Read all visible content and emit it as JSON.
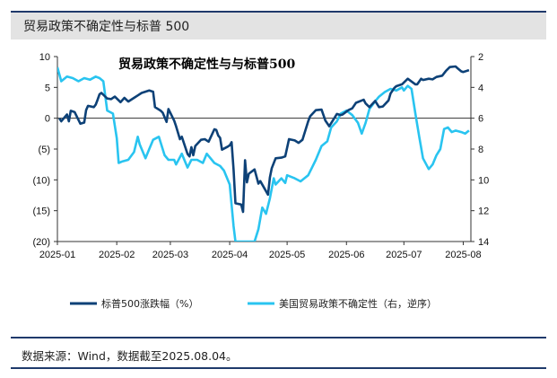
{
  "header": {
    "title": "贸易政策不确定性与标普 500"
  },
  "footer": {
    "source": "数据来源：Wind，数据截至2025.08.04。"
  },
  "chart_data": {
    "type": "line",
    "title": "贸易政策不确定性与与标普500",
    "x_ticks": [
      "2025-01",
      "2025-02",
      "2025-03",
      "2025-04",
      "2025-05",
      "2025-06",
      "2025-07",
      "2025-08"
    ],
    "xlim": [
      "2025-01-01",
      "2025-08-05"
    ],
    "y_left": {
      "ylim": [
        -20,
        10
      ],
      "ticks": [
        {
          "value": 10,
          "label": "10",
          "color": "#111111"
        },
        {
          "value": 5,
          "label": "5",
          "color": "#111111"
        },
        {
          "value": 0,
          "label": "0",
          "color": "#111111"
        },
        {
          "value": -5,
          "label": "(5)",
          "color": "#e0201f"
        },
        {
          "value": -10,
          "label": "(10)",
          "color": "#e0201f"
        },
        {
          "value": -15,
          "label": "(15)",
          "color": "#e0201f"
        },
        {
          "value": -20,
          "label": "(20)",
          "color": "#e0201f"
        }
      ]
    },
    "y_right": {
      "ylim": [
        2,
        14
      ],
      "inverted": true,
      "ticks": [
        {
          "value": 2,
          "label": "2"
        },
        {
          "value": 4,
          "label": "4"
        },
        {
          "value": 6,
          "label": "6"
        },
        {
          "value": 8,
          "label": "8"
        },
        {
          "value": 10,
          "label": "10"
        },
        {
          "value": 12,
          "label": "12"
        },
        {
          "value": 14,
          "label": "14"
        }
      ]
    },
    "legend_placement": "bottom",
    "series": [
      {
        "name": "标普500涨跌幅（%）",
        "axis": "left",
        "color": "#0d4177",
        "points": [
          [
            "2025-01-02",
            0.0
          ],
          [
            "2025-01-03",
            -0.5
          ],
          [
            "2025-01-06",
            0.6
          ],
          [
            "2025-01-07",
            -0.5
          ],
          [
            "2025-01-08",
            1.2
          ],
          [
            "2025-01-10",
            1.0
          ],
          [
            "2025-01-13",
            -0.9
          ],
          [
            "2025-01-15",
            -0.7
          ],
          [
            "2025-01-16",
            1.3
          ],
          [
            "2025-01-17",
            2.0
          ],
          [
            "2025-01-20",
            1.8
          ],
          [
            "2025-01-21",
            2.2
          ],
          [
            "2025-01-22",
            3.0
          ],
          [
            "2025-01-23",
            3.9
          ],
          [
            "2025-01-24",
            4.1
          ],
          [
            "2025-01-27",
            3.2
          ],
          [
            "2025-01-29",
            3.1
          ],
          [
            "2025-01-31",
            3.5
          ],
          [
            "2025-02-03",
            2.6
          ],
          [
            "2025-02-05",
            3.3
          ],
          [
            "2025-02-07",
            2.7
          ],
          [
            "2025-02-10",
            3.3
          ],
          [
            "2025-02-12",
            3.7
          ],
          [
            "2025-02-14",
            4.1
          ],
          [
            "2025-02-18",
            4.5
          ],
          [
            "2025-02-19",
            4.4
          ],
          [
            "2025-02-20",
            4.3
          ],
          [
            "2025-02-21",
            1.8
          ],
          [
            "2025-02-24",
            1.2
          ],
          [
            "2025-02-25",
            0.9
          ],
          [
            "2025-02-27",
            -0.6
          ],
          [
            "2025-02-28",
            1.5
          ],
          [
            "2025-03-03",
            -0.4
          ],
          [
            "2025-03-04",
            -1.3
          ],
          [
            "2025-03-06",
            -3.4
          ],
          [
            "2025-03-07",
            -3.0
          ],
          [
            "2025-03-10",
            -5.8
          ],
          [
            "2025-03-11",
            -6.2
          ],
          [
            "2025-03-12",
            -4.7
          ],
          [
            "2025-03-13",
            -6.0
          ],
          [
            "2025-03-14",
            -4.5
          ],
          [
            "2025-03-17",
            -3.5
          ],
          [
            "2025-03-19",
            -3.4
          ],
          [
            "2025-03-21",
            -3.8
          ],
          [
            "2025-03-24",
            -1.8
          ],
          [
            "2025-03-25",
            -1.9
          ],
          [
            "2025-03-26",
            -2.8
          ],
          [
            "2025-03-27",
            -3.2
          ],
          [
            "2025-03-28",
            -5.1
          ],
          [
            "2025-03-31",
            -4.6
          ],
          [
            "2025-04-01",
            -4.4
          ],
          [
            "2025-04-02",
            -3.9
          ],
          [
            "2025-04-03",
            -8.3
          ],
          [
            "2025-04-04",
            -13.8
          ],
          [
            "2025-04-07",
            -14.0
          ],
          [
            "2025-04-08",
            -15.2
          ],
          [
            "2025-04-09",
            -6.8
          ],
          [
            "2025-04-10",
            -10.4
          ],
          [
            "2025-04-11",
            -9.0
          ],
          [
            "2025-04-14",
            -8.3
          ],
          [
            "2025-04-16",
            -10.6
          ],
          [
            "2025-04-17",
            -10.2
          ],
          [
            "2025-04-21",
            -12.4
          ],
          [
            "2025-04-22",
            -9.6
          ],
          [
            "2025-04-23",
            -8.1
          ],
          [
            "2025-04-25",
            -6.5
          ],
          [
            "2025-04-28",
            -6.4
          ],
          [
            "2025-04-30",
            -6.2
          ],
          [
            "2025-05-02",
            -3.4
          ],
          [
            "2025-05-05",
            -3.6
          ],
          [
            "2025-05-07",
            -4.0
          ],
          [
            "2025-05-09",
            -3.5
          ],
          [
            "2025-05-12",
            -0.5
          ],
          [
            "2025-05-13",
            0.3
          ],
          [
            "2025-05-16",
            1.3
          ],
          [
            "2025-05-19",
            1.4
          ],
          [
            "2025-05-21",
            -0.4
          ],
          [
            "2025-05-23",
            -1.3
          ],
          [
            "2025-05-27",
            0.7
          ],
          [
            "2025-05-29",
            0.5
          ],
          [
            "2025-05-30",
            0.6
          ],
          [
            "2025-06-02",
            1.3
          ],
          [
            "2025-06-04",
            1.6
          ],
          [
            "2025-06-06",
            2.5
          ],
          [
            "2025-06-10",
            3.0
          ],
          [
            "2025-06-11",
            2.4
          ],
          [
            "2025-06-13",
            1.8
          ],
          [
            "2025-06-16",
            2.8
          ],
          [
            "2025-06-18",
            1.8
          ],
          [
            "2025-06-20",
            1.9
          ],
          [
            "2025-06-23",
            2.9
          ],
          [
            "2025-06-24",
            4.0
          ],
          [
            "2025-06-26",
            4.9
          ],
          [
            "2025-06-27",
            5.2
          ],
          [
            "2025-06-30",
            5.5
          ],
          [
            "2025-07-03",
            6.4
          ],
          [
            "2025-07-07",
            5.5
          ],
          [
            "2025-07-08",
            5.5
          ],
          [
            "2025-07-10",
            6.4
          ],
          [
            "2025-07-11",
            6.2
          ],
          [
            "2025-07-14",
            6.4
          ],
          [
            "2025-07-16",
            6.3
          ],
          [
            "2025-07-18",
            6.7
          ],
          [
            "2025-07-21",
            6.9
          ],
          [
            "2025-07-23",
            7.7
          ],
          [
            "2025-07-25",
            8.3
          ],
          [
            "2025-07-28",
            8.4
          ],
          [
            "2025-07-29",
            8.1
          ],
          [
            "2025-07-31",
            7.6
          ],
          [
            "2025-08-01",
            7.5
          ],
          [
            "2025-08-04",
            7.8
          ]
        ]
      },
      {
        "name": "美国贸易政策不确定性（右，逆序）",
        "axis": "right",
        "color": "#29c4f0",
        "points": [
          [
            "2025-01-01",
            2.7
          ],
          [
            "2025-01-03",
            3.6
          ],
          [
            "2025-01-06",
            3.3
          ],
          [
            "2025-01-09",
            3.4
          ],
          [
            "2025-01-12",
            3.6
          ],
          [
            "2025-01-15",
            3.4
          ],
          [
            "2025-01-18",
            3.5
          ],
          [
            "2025-01-21",
            3.3
          ],
          [
            "2025-01-23",
            3.4
          ],
          [
            "2025-01-25",
            3.6
          ],
          [
            "2025-01-27",
            5.5
          ],
          [
            "2025-01-30",
            5.7
          ],
          [
            "2025-02-01",
            7.3
          ],
          [
            "2025-02-02",
            8.9
          ],
          [
            "2025-02-04",
            8.8
          ],
          [
            "2025-02-07",
            8.7
          ],
          [
            "2025-02-10",
            8.2
          ],
          [
            "2025-02-12",
            7.2
          ],
          [
            "2025-02-13",
            7.7
          ],
          [
            "2025-02-16",
            8.6
          ],
          [
            "2025-02-18",
            8.0
          ],
          [
            "2025-02-20",
            7.4
          ],
          [
            "2025-02-23",
            7.2
          ],
          [
            "2025-02-26",
            8.4
          ],
          [
            "2025-02-28",
            8.7
          ],
          [
            "2025-03-03",
            8.7
          ],
          [
            "2025-03-04",
            9.0
          ],
          [
            "2025-03-07",
            8.3
          ],
          [
            "2025-03-10",
            9.2
          ],
          [
            "2025-03-12",
            8.7
          ],
          [
            "2025-03-15",
            8.7
          ],
          [
            "2025-03-18",
            8.9
          ],
          [
            "2025-03-20",
            8.3
          ],
          [
            "2025-03-24",
            8.9
          ],
          [
            "2025-03-27",
            9.1
          ],
          [
            "2025-03-29",
            9.4
          ],
          [
            "2025-04-01",
            10.3
          ],
          [
            "2025-04-03",
            13.0
          ],
          [
            "2025-04-04",
            14.0
          ],
          [
            "2025-04-14",
            14.0
          ],
          [
            "2025-04-16",
            13.2
          ],
          [
            "2025-04-18",
            11.8
          ],
          [
            "2025-04-20",
            12.2
          ],
          [
            "2025-04-22",
            11.2
          ],
          [
            "2025-04-24",
            9.9
          ],
          [
            "2025-04-25",
            10.3
          ],
          [
            "2025-04-28",
            9.9
          ],
          [
            "2025-04-30",
            10.2
          ],
          [
            "2025-05-01",
            9.7
          ],
          [
            "2025-05-05",
            9.9
          ],
          [
            "2025-05-08",
            10.1
          ],
          [
            "2025-05-10",
            9.9
          ],
          [
            "2025-05-12",
            9.7
          ],
          [
            "2025-05-14",
            9.2
          ],
          [
            "2025-05-16",
            8.7
          ],
          [
            "2025-05-19",
            7.8
          ],
          [
            "2025-05-22",
            7.5
          ],
          [
            "2025-05-24",
            6.6
          ],
          [
            "2025-05-27",
            6.2
          ],
          [
            "2025-05-29",
            5.7
          ],
          [
            "2025-06-01",
            5.5
          ],
          [
            "2025-06-04",
            5.8
          ],
          [
            "2025-06-07",
            6.3
          ],
          [
            "2025-06-09",
            7.0
          ],
          [
            "2025-06-11",
            6.3
          ],
          [
            "2025-06-13",
            5.4
          ],
          [
            "2025-06-16",
            4.9
          ],
          [
            "2025-06-18",
            4.6
          ],
          [
            "2025-06-21",
            4.3
          ],
          [
            "2025-06-24",
            4.1
          ],
          [
            "2025-06-27",
            4.2
          ],
          [
            "2025-06-30",
            4.0
          ],
          [
            "2025-07-01",
            4.2
          ],
          [
            "2025-07-03",
            3.9
          ],
          [
            "2025-07-05",
            4.1
          ],
          [
            "2025-07-07",
            5.7
          ],
          [
            "2025-07-09",
            7.2
          ],
          [
            "2025-07-11",
            8.6
          ],
          [
            "2025-07-14",
            9.3
          ],
          [
            "2025-07-16",
            9.0
          ],
          [
            "2025-07-18",
            8.4
          ],
          [
            "2025-07-20",
            8.0
          ],
          [
            "2025-07-22",
            6.7
          ],
          [
            "2025-07-24",
            6.6
          ],
          [
            "2025-07-26",
            6.9
          ],
          [
            "2025-07-28",
            6.8
          ],
          [
            "2025-07-31",
            6.9
          ],
          [
            "2025-08-02",
            7.0
          ],
          [
            "2025-08-04",
            6.8
          ]
        ]
      }
    ]
  }
}
